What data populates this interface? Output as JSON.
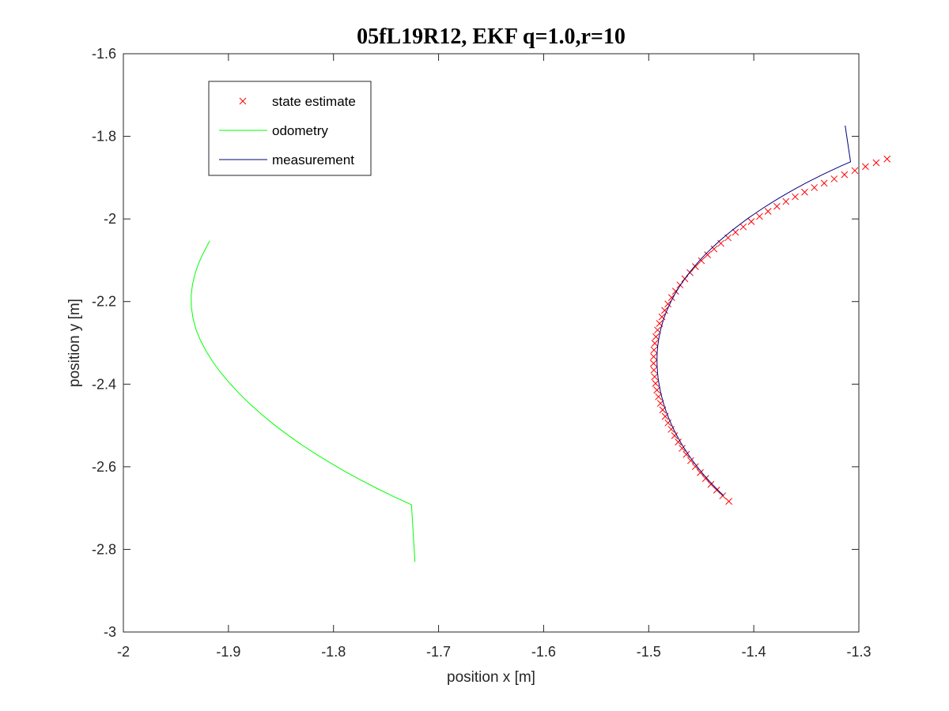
{
  "chart_data": {
    "type": "line",
    "title": "05fL19R12, EKF q=1.0,r=10",
    "xlabel": "position x [m]",
    "ylabel": "position y [m]",
    "xlim": [
      -2,
      -1.3
    ],
    "ylim": [
      -3,
      -1.6
    ],
    "xticks": [
      -2,
      -1.9,
      -1.8,
      -1.7,
      -1.6,
      -1.5,
      -1.4,
      -1.3
    ],
    "xtick_labels": [
      "-2",
      "-1.9",
      "-1.8",
      "-1.7",
      "-1.6",
      "-1.5",
      "-1.4",
      "-1.3"
    ],
    "yticks": [
      -1.6,
      -1.8,
      -2,
      -2.2,
      -2.4,
      -2.6,
      -2.8,
      -3
    ],
    "ytick_labels": [
      "-1.6",
      "-1.8",
      "-2",
      "-2.2",
      "-2.4",
      "-2.6",
      "-2.8",
      "-3"
    ],
    "grid": false,
    "legend_position": "top-left",
    "series": [
      {
        "name": "state estimate",
        "style": "markers",
        "marker": "x",
        "color": "#ff0000",
        "points": [
          [
            -1.4237,
            -2.6837
          ],
          [
            -1.4296,
            -2.6702
          ],
          [
            -1.4353,
            -2.6565
          ],
          [
            -1.4408,
            -2.6426
          ],
          [
            -1.4459,
            -2.6285
          ],
          [
            -1.4509,
            -2.6142
          ],
          [
            -1.4556,
            -2.5997
          ],
          [
            -1.46,
            -2.5851
          ],
          [
            -1.4642,
            -2.5702
          ],
          [
            -1.4682,
            -2.5552
          ],
          [
            -1.4719,
            -2.5401
          ],
          [
            -1.4754,
            -2.5248
          ],
          [
            -1.4786,
            -2.5093
          ],
          [
            -1.4816,
            -2.4938
          ],
          [
            -1.4843,
            -2.4781
          ],
          [
            -1.4867,
            -2.4623
          ],
          [
            -1.4888,
            -2.4464
          ],
          [
            -1.4907,
            -2.4304
          ],
          [
            -1.4922,
            -2.4143
          ],
          [
            -1.4935,
            -2.3982
          ],
          [
            -1.4944,
            -2.3821
          ],
          [
            -1.4951,
            -2.3659
          ],
          [
            -1.4954,
            -2.3497
          ],
          [
            -1.4953,
            -2.3335
          ],
          [
            -1.495,
            -2.3173
          ],
          [
            -1.4942,
            -2.3012
          ],
          [
            -1.4931,
            -2.2851
          ],
          [
            -1.4916,
            -2.269
          ],
          [
            -1.4897,
            -2.2531
          ],
          [
            -1.4874,
            -2.2372
          ],
          [
            -1.4848,
            -2.2214
          ],
          [
            -1.4817,
            -2.2058
          ],
          [
            -1.4782,
            -2.1903
          ],
          [
            -1.4744,
            -2.175
          ],
          [
            -1.4702,
            -2.1598
          ],
          [
            -1.4656,
            -2.1448
          ],
          [
            -1.4607,
            -2.13
          ],
          [
            -1.4555,
            -2.1154
          ],
          [
            -1.4499,
            -2.101
          ],
          [
            -1.444,
            -2.0868
          ],
          [
            -1.4378,
            -2.0728
          ],
          [
            -1.4313,
            -2.0591
          ],
          [
            -1.4245,
            -2.0455
          ],
          [
            -1.4174,
            -2.0323
          ],
          [
            -1.41,
            -2.0192
          ],
          [
            -1.4024,
            -2.0064
          ],
          [
            -1.3945,
            -1.9939
          ],
          [
            -1.3864,
            -1.9816
          ],
          [
            -1.378,
            -1.9696
          ],
          [
            -1.3694,
            -1.9578
          ],
          [
            -1.3606,
            -1.9463
          ],
          [
            -1.3516,
            -1.9351
          ],
          [
            -1.3424,
            -1.9241
          ],
          [
            -1.333,
            -1.9134
          ],
          [
            -1.3235,
            -1.903
          ],
          [
            -1.3137,
            -1.8928
          ],
          [
            -1.3038,
            -1.8829
          ],
          [
            -1.2937,
            -1.8733
          ],
          [
            -1.2835,
            -1.8639
          ],
          [
            -1.2731,
            -1.8549
          ]
        ]
      },
      {
        "name": "odometry",
        "style": "line",
        "color": "#00ff00",
        "points": [
          [
            -1.9177,
            -2.0528
          ],
          [
            -1.9233,
            -2.0792
          ],
          [
            -1.9281,
            -2.1058
          ],
          [
            -1.9318,
            -2.1326
          ],
          [
            -1.9343,
            -2.1596
          ],
          [
            -1.9355,
            -2.1867
          ],
          [
            -1.9353,
            -2.2138
          ],
          [
            -1.9337,
            -2.2409
          ],
          [
            -1.9308,
            -2.2679
          ],
          [
            -1.9265,
            -2.2947
          ],
          [
            -1.921,
            -2.3213
          ],
          [
            -1.9144,
            -2.3476
          ],
          [
            -1.9068,
            -2.3736
          ],
          [
            -1.8983,
            -2.3993
          ],
          [
            -1.8889,
            -2.4247
          ],
          [
            -1.8788,
            -2.4497
          ],
          [
            -1.8679,
            -2.4743
          ],
          [
            -1.8563,
            -2.4985
          ],
          [
            -1.844,
            -2.5222
          ],
          [
            -1.8311,
            -2.5453
          ],
          [
            -1.8176,
            -2.5679
          ],
          [
            -1.8035,
            -2.59
          ],
          [
            -1.7889,
            -2.6115
          ],
          [
            -1.7738,
            -2.6325
          ],
          [
            -1.7582,
            -2.6529
          ],
          [
            -1.7422,
            -2.6727
          ],
          [
            -1.7258,
            -2.6919
          ],
          [
            -1.7225,
            -2.8304
          ]
        ]
      },
      {
        "name": "measurement",
        "style": "line",
        "color": "#00007f",
        "points": [
          [
            -1.4287,
            -2.67
          ],
          [
            -1.4342,
            -2.6565
          ],
          [
            -1.4394,
            -2.6428
          ],
          [
            -1.4444,
            -2.6289
          ],
          [
            -1.4492,
            -2.6148
          ],
          [
            -1.4537,
            -2.6005
          ],
          [
            -1.458,
            -2.5861
          ],
          [
            -1.462,
            -2.5715
          ],
          [
            -1.4658,
            -2.5567
          ],
          [
            -1.4694,
            -2.5418
          ],
          [
            -1.4727,
            -2.5268
          ],
          [
            -1.4758,
            -2.5116
          ],
          [
            -1.4786,
            -2.4963
          ],
          [
            -1.4812,
            -2.4809
          ],
          [
            -1.4835,
            -2.4654
          ],
          [
            -1.4855,
            -2.4498
          ],
          [
            -1.4873,
            -2.4341
          ],
          [
            -1.4888,
            -2.4183
          ],
          [
            -1.49,
            -2.4025
          ],
          [
            -1.491,
            -2.3866
          ],
          [
            -1.4916,
            -2.3707
          ],
          [
            -1.492,
            -2.3548
          ],
          [
            -1.4921,
            -2.3388
          ],
          [
            -1.4919,
            -2.3229
          ],
          [
            -1.4914,
            -2.307
          ],
          [
            -1.4905,
            -2.2911
          ],
          [
            -1.4893,
            -2.2753
          ],
          [
            -1.4878,
            -2.2595
          ],
          [
            -1.486,
            -2.2438
          ],
          [
            -1.4838,
            -2.2282
          ],
          [
            -1.4812,
            -2.2127
          ],
          [
            -1.4783,
            -2.1973
          ],
          [
            -1.4751,
            -2.182
          ],
          [
            -1.4715,
            -2.1669
          ],
          [
            -1.4676,
            -2.1519
          ],
          [
            -1.4634,
            -2.1371
          ],
          [
            -1.4589,
            -2.1225
          ],
          [
            -1.4541,
            -2.108
          ],
          [
            -1.449,
            -2.0937
          ],
          [
            -1.4436,
            -2.0796
          ],
          [
            -1.4379,
            -2.0657
          ],
          [
            -1.432,
            -2.052
          ],
          [
            -1.4258,
            -2.0385
          ],
          [
            -1.4194,
            -2.0252
          ],
          [
            -1.4127,
            -2.0121
          ],
          [
            -1.4058,
            -1.9992
          ],
          [
            -1.3987,
            -1.9865
          ],
          [
            -1.3913,
            -1.974
          ],
          [
            -1.3838,
            -1.9618
          ],
          [
            -1.376,
            -1.9497
          ],
          [
            -1.3681,
            -1.9379
          ],
          [
            -1.36,
            -1.9263
          ],
          [
            -1.3517,
            -1.9149
          ],
          [
            -1.3432,
            -1.9038
          ],
          [
            -1.3346,
            -1.8929
          ],
          [
            -1.3258,
            -1.8822
          ],
          [
            -1.3169,
            -1.8718
          ],
          [
            -1.3079,
            -1.8616
          ],
          [
            -1.313,
            -1.774
          ]
        ]
      }
    ]
  }
}
